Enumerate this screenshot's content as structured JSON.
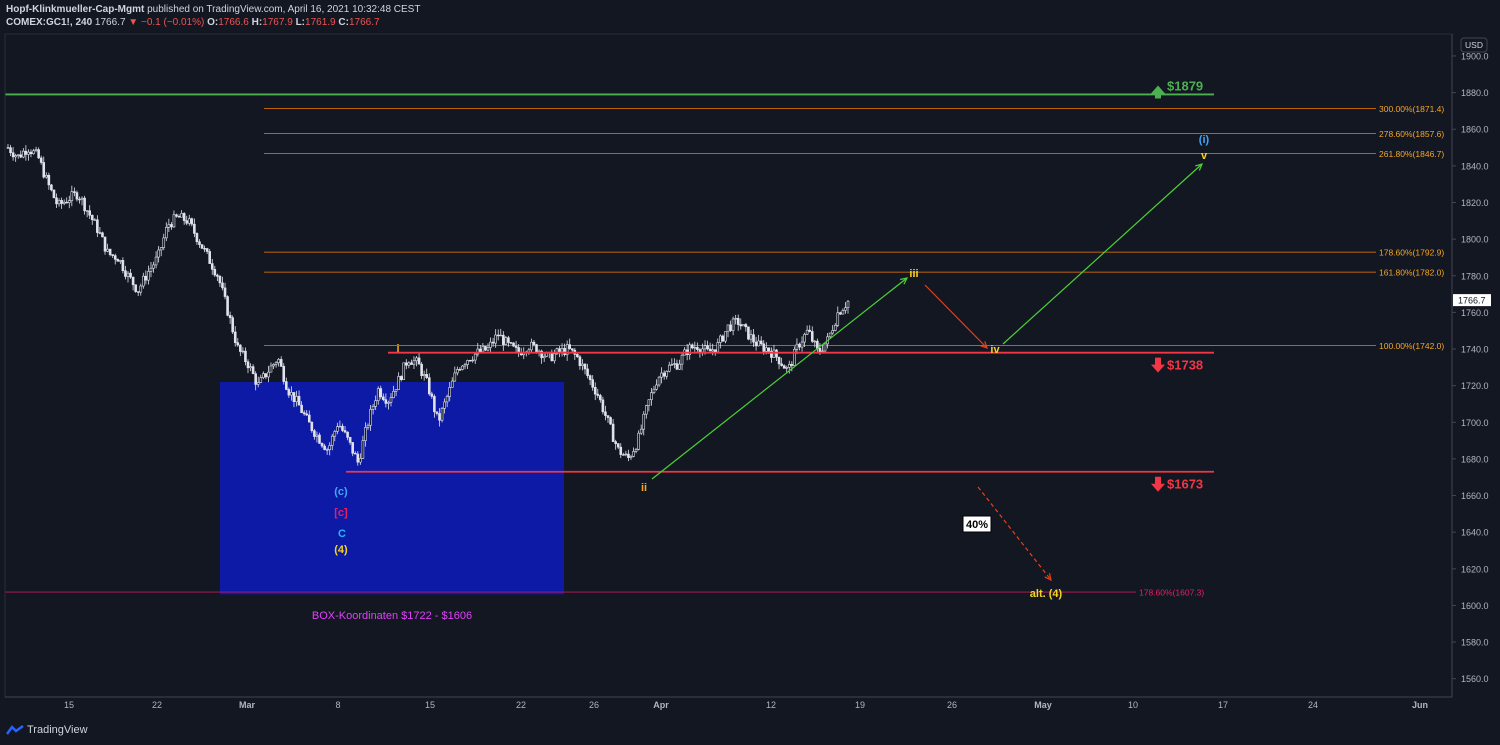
{
  "header": {
    "author": "Hopf-Klinkmueller-Cap-Mgmt",
    "published": "published on TradingView.com, April 16, 2021 10:32:48 CEST",
    "symbol": "COMEX:GC1!, 240",
    "last": "1766.7",
    "change": "−0.1 (−0.01%)",
    "o_label": "O:",
    "o_value": "1766.6",
    "h_label": "H:",
    "h_value": "1767.9",
    "l_label": "L:",
    "l_value": "1761.9",
    "c_label": "C:",
    "c_value": "1766.7"
  },
  "footer": {
    "brand": "TradingView"
  },
  "chart_data": {
    "type": "candlestick",
    "currency": "USD",
    "ylim": [
      1550,
      1912
    ],
    "y_ticks": [
      1560,
      1580,
      1600,
      1620,
      1640,
      1660,
      1680,
      1700,
      1720,
      1740,
      1760,
      1780,
      1800,
      1820,
      1840,
      1860,
      1880,
      1900
    ],
    "x_ticks": [
      "15",
      "22",
      "Mar",
      "8",
      "15",
      "22",
      "26",
      "Apr",
      "12",
      "19",
      "26",
      "May",
      "10",
      "17",
      "24",
      "Jun"
    ],
    "price_label": "1766.7",
    "close_path": [
      1850,
      1845,
      1850,
      1845,
      1830,
      1818,
      1822,
      1825,
      1815,
      1805,
      1792,
      1790,
      1780,
      1772,
      1782,
      1790,
      1808,
      1812,
      1810,
      1800,
      1790,
      1780,
      1760,
      1740,
      1732,
      1720,
      1728,
      1735,
      1718,
      1710,
      1700,
      1692,
      1685,
      1700,
      1690,
      1678,
      1700,
      1718,
      1712,
      1722,
      1735,
      1732,
      1720,
      1700,
      1715,
      1730,
      1735,
      1738,
      1740,
      1748,
      1742,
      1738,
      1742,
      1740,
      1735,
      1738,
      1740,
      1735,
      1725,
      1715,
      1700,
      1685,
      1680,
      1690,
      1710,
      1725,
      1730,
      1732,
      1740,
      1742,
      1738,
      1742,
      1752,
      1755,
      1748,
      1742,
      1740,
      1735,
      1728,
      1742,
      1750,
      1738,
      1745,
      1760,
      1766
    ],
    "horizontal_levels": [
      {
        "price": 1879,
        "label": "$1879",
        "color": "#4caf50"
      },
      {
        "price": 1738,
        "label": "$1738",
        "color": "#f23645"
      },
      {
        "price": 1673,
        "label": "$1673",
        "color": "#f23645"
      }
    ],
    "fib_levels": [
      {
        "price": 1871.4,
        "label": "300.00%(1871.4)"
      },
      {
        "price": 1857.6,
        "label": "278.60%(1857.6)"
      },
      {
        "price": 1846.7,
        "label": "261.80%(1846.7)"
      },
      {
        "price": 1792.9,
        "label": "178.60%(1792.9)"
      },
      {
        "price": 1782.0,
        "label": "161.80%(1782.0)"
      },
      {
        "price": 1742.0,
        "label": "100.00%(1742.0)"
      },
      {
        "price": 1607.3,
        "label": "178.60%(1607.3)"
      }
    ],
    "box": {
      "top": 1722,
      "bottom": 1606,
      "label": "BOX-Koordinaten $1722 - $1606"
    },
    "wave_labels": [
      "i",
      "ii",
      "iii",
      "iv",
      "v",
      "(i)",
      "(c)",
      "[c]",
      "C",
      "(4)",
      "alt. (4)"
    ],
    "annotation_percent": "40%"
  }
}
